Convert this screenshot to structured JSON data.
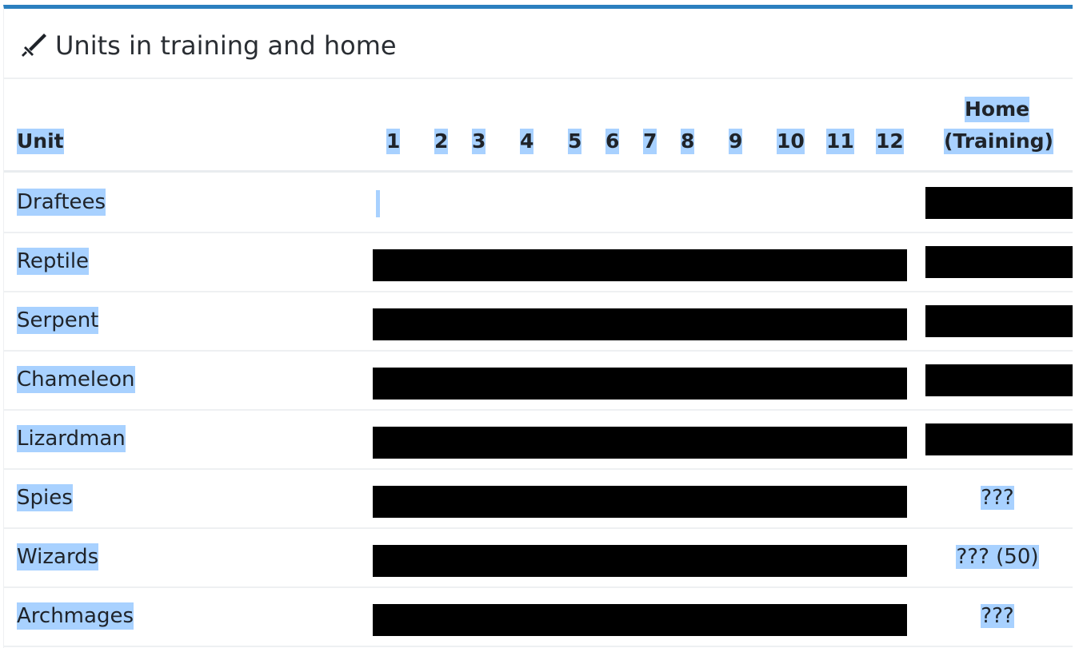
{
  "panel": {
    "title": "Units in training and home",
    "title_icon": "sword-icon",
    "accent_color": "#2b7fbf"
  },
  "table": {
    "header": {
      "unit": "Unit",
      "hours": [
        "1",
        "2",
        "3",
        "4",
        "5",
        "6",
        "7",
        "8",
        "9",
        "10",
        "11",
        "12"
      ],
      "home_line1": "Home",
      "home_line2": "(Training)"
    },
    "rows": [
      {
        "name": "Draftees",
        "home": ""
      },
      {
        "name": "Reptile",
        "home": ""
      },
      {
        "name": "Serpent",
        "home": ""
      },
      {
        "name": "Chameleon",
        "home": ""
      },
      {
        "name": "Lizardman",
        "home": ""
      },
      {
        "name": "Spies",
        "home": "???"
      },
      {
        "name": "Wizards",
        "home": "??? (50)"
      },
      {
        "name": "Archmages",
        "home": "???"
      }
    ]
  }
}
